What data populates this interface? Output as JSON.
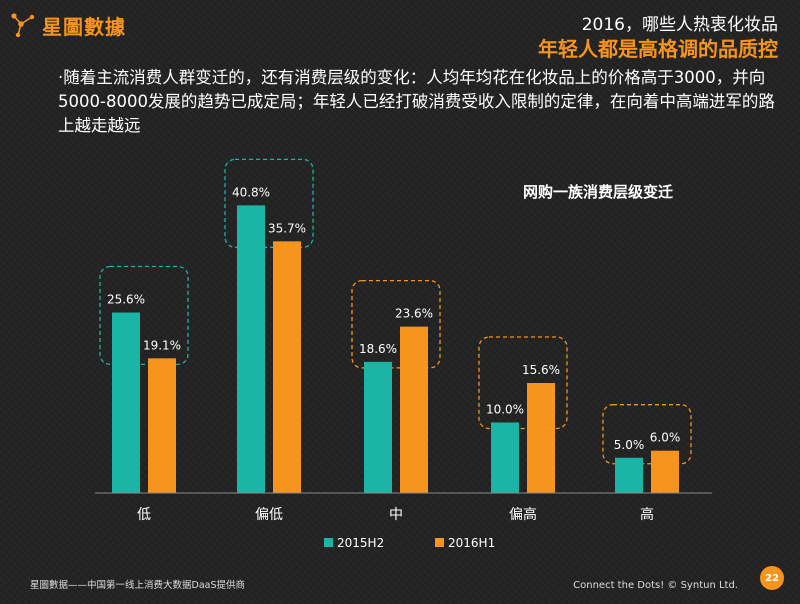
{
  "brand": {
    "name": "星圖數據",
    "logo_icon": "connected-dots-icon",
    "accent_color": "#f7941d"
  },
  "header": {
    "subtitle": "2016，哪些人热衷化妆品",
    "title": "年轻人都是高格调的品质控"
  },
  "description": "·随着主流消费人群变迁的，还有消费层级的变化：人均年均花在化妆品上的价格高于3000，并向5000-8000发展的趋势已成定局；年轻人已经打破消费受收入限制的定律，在向着中高端进军的路上越走越远",
  "chart_data": {
    "type": "bar",
    "title": "网购一族消费层级变迁",
    "categories": [
      "低",
      "偏低",
      "中",
      "偏高",
      "高"
    ],
    "series": [
      {
        "name": "2015H2",
        "values": [
          25.6,
          40.8,
          18.6,
          10.0,
          5.0
        ],
        "labels": [
          "25.6%",
          "40.8%",
          "18.6%",
          "10.0%",
          "5.0%"
        ],
        "color": "#1ab5a5"
      },
      {
        "name": "2016H1",
        "values": [
          19.1,
          35.7,
          23.6,
          15.6,
          6.0
        ],
        "labels": [
          "19.1%",
          "35.7%",
          "23.6%",
          "15.6%",
          "6.0%"
        ],
        "color": "#f7941d"
      }
    ],
    "highlight_box_colors": [
      "#1ab5a5",
      "#1ab5a5",
      "#f7941d",
      "#f7941d",
      "#f7941d"
    ],
    "ylim": [
      0,
      45
    ],
    "legend_position": "bottom",
    "grid": false
  },
  "footer": {
    "left": "星圖數据——中国第一线上消费大数据DaaS提供商",
    "right": "Connect the Dots! © Syntun Ltd.",
    "page": "22"
  }
}
